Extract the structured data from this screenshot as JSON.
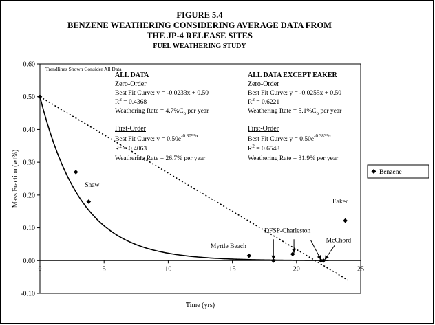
{
  "chart_data": {
    "type": "scatter",
    "title_lines": [
      "FIGURE 5.4",
      "BENZENE WEATHERING CONSIDERING AVERAGE DATA FROM",
      "THE JP-4 RELEASE SITES"
    ],
    "subtitle": "FUEL WEATHERING STUDY",
    "xlabel": "Time (yrs)",
    "ylabel": "Mass Fraction (wt%)",
    "xlim": [
      0,
      25
    ],
    "ylim": [
      -0.1,
      0.6
    ],
    "x_ticks": [
      0,
      5,
      10,
      15,
      20,
      25
    ],
    "y_ticks": [
      -0.1,
      0.0,
      0.1,
      0.2,
      0.3,
      0.4,
      0.5,
      0.6
    ],
    "x_tick_labels": [
      "0",
      "5",
      "10",
      "15",
      "20",
      "25"
    ],
    "y_tick_labels": [
      "-0.10",
      "0.00",
      "0.10",
      "0.20",
      "0.30",
      "0.40",
      "0.50",
      "0.60"
    ],
    "grid": false,
    "legend_position": "right",
    "series": [
      {
        "name": "Benzene",
        "x": [
          0,
          2.8,
          3.8,
          16.3,
          18.2,
          19.7,
          21.9,
          22.1,
          23.8
        ],
        "y": [
          0.5,
          0.27,
          0.18,
          0.015,
          0.0,
          0.02,
          0.0,
          0.0,
          0.122
        ]
      }
    ],
    "trendlines": [
      {
        "kind": "exponential",
        "a": 0.5,
        "b": -0.3099,
        "style": "solid"
      },
      {
        "kind": "linear",
        "slope": -0.0233,
        "intercept": 0.5,
        "style": "dotted",
        "x_end": 24
      }
    ],
    "trend_note": "Trendlines Shown Consider All Data",
    "annotations": [
      {
        "text": "Shaw",
        "x": 3.5,
        "y": 0.225
      },
      {
        "text": "Myrtle Beach",
        "x": 13.3,
        "y": 0.038
      },
      {
        "text": "DFSP-Charleston",
        "x": 17.5,
        "y": 0.085
      },
      {
        "text": "McChord",
        "x": 22.3,
        "y": 0.056
      },
      {
        "text": "Eaker",
        "x": 22.8,
        "y": 0.175
      }
    ],
    "pointer_arrows": [
      {
        "from": [
          18.2,
          0.065
        ],
        "to": [
          18.2,
          0.003
        ]
      },
      {
        "from": [
          19.8,
          0.065
        ],
        "to": [
          19.8,
          0.023
        ]
      },
      {
        "from": [
          21.1,
          0.063
        ],
        "to": [
          21.9,
          0.003
        ]
      },
      {
        "from": [
          23.0,
          0.048
        ],
        "to": [
          22.2,
          0.003
        ]
      }
    ],
    "stats": {
      "all": {
        "header": "ALL DATA",
        "zero_label": "Zero-Order",
        "zero_fit": "Best Fit Curve:  y = -0.0233x + 0.50",
        "zero_r2": "R",
        "zero_r2_sup": "2",
        "zero_r2_val": " = 0.4368",
        "zero_rate": "Weathering Rate = 4.7%C",
        "zero_rate_sub": "o",
        "zero_rate_tail": " per year",
        "first_label": "First-Order",
        "first_fit": "Best Fit Curve:  y = 0.50e",
        "first_fit_sup": "-0.3099x",
        "first_r2": "R",
        "first_r2_sup": "2",
        "first_r2_val": " = 0.4063",
        "first_rate": "Weathering Rate = 26.7% per year"
      },
      "except": {
        "header": "ALL DATA EXCEPT EAKER",
        "zero_label": "Zero-Order",
        "zero_fit": "Best Fit Curve:  y = -0.0255x + 0.50",
        "zero_r2": "R",
        "zero_r2_sup": "2",
        "zero_r2_val": " = 0.6221",
        "zero_rate": "Weathering Rate = 5.1%C",
        "zero_rate_sub": "o",
        "zero_rate_tail": " per year",
        "first_label": "First-Order",
        "first_fit": "Best Fit Curve:  y = 0.50e",
        "first_fit_sup": "-0.3839x",
        "first_r2": "R",
        "first_r2_sup": "2",
        "first_r2_val": " = 0.6548",
        "first_rate": "Weathering Rate = 31.9% per year"
      }
    },
    "legend": {
      "label": "Benzene"
    }
  }
}
